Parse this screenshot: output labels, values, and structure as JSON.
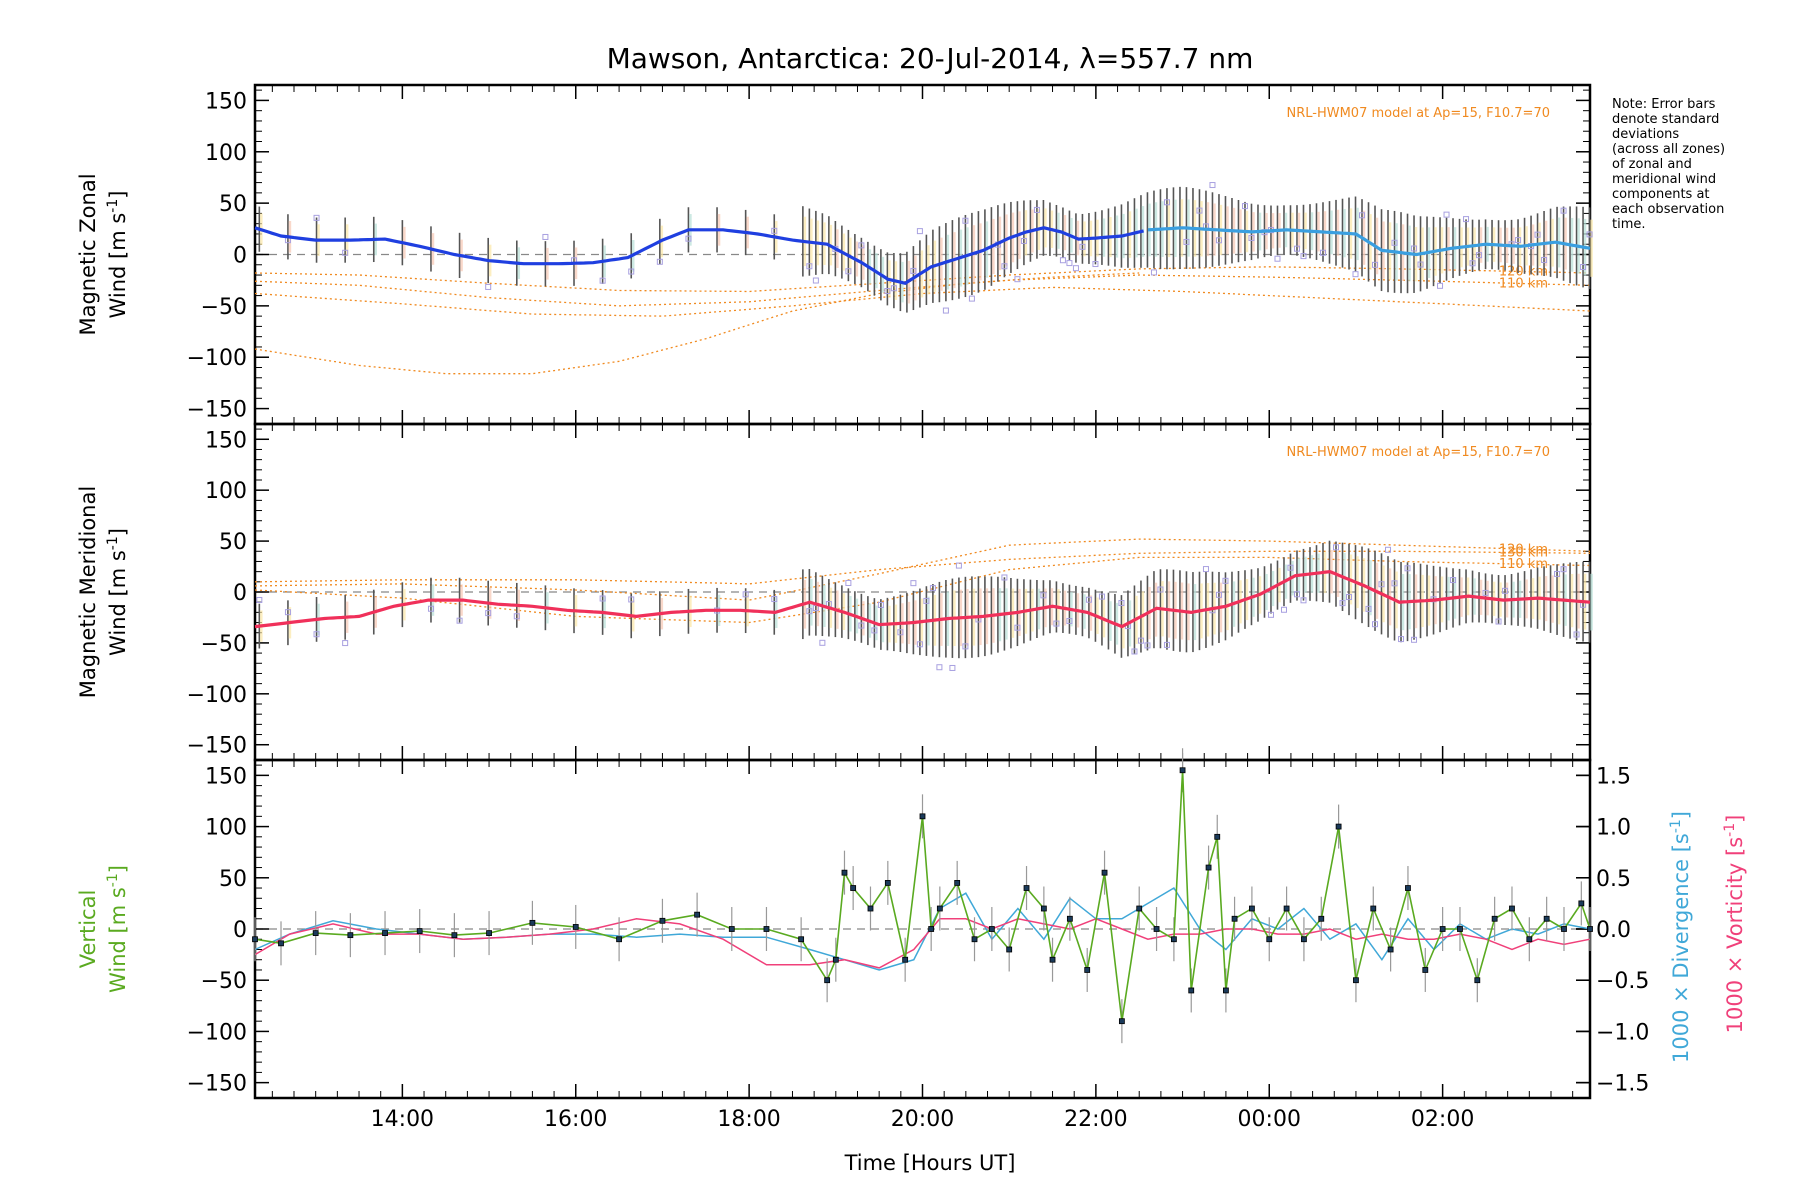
{
  "title": "Mawson, Antarctica: 20-Jul-2014, λ=557.7 nm",
  "note": [
    "Note: Error bars",
    "denote standard",
    "deviations",
    "(across all zones)",
    "of zonal and",
    "meridional wind",
    "components at",
    "each observation",
    "time."
  ],
  "colors": {
    "zonal_mean": "#1f3fe0",
    "zonal_mean_late": "#3a9fe0",
    "meridional_mean": "#f0305a",
    "model": "#f08a20",
    "vertical": "#5aaa20",
    "divergence": "#40a8d8",
    "vorticity": "#f0407a",
    "scatter": "#a8a0e0",
    "error_bar": "#555555"
  },
  "chart_data": [
    {
      "type": "line",
      "panel": "zonal",
      "ylabel_line1": "Magnetic Zonal",
      "ylabel_line2": "Wind",
      "ylabel_unit": "[m s",
      "ylabel_exp": "-1",
      "ylabel_close": "]",
      "ylim": [
        -165,
        165
      ],
      "yticks": [
        -150,
        -100,
        -50,
        0,
        50,
        100,
        150
      ],
      "model_label": "NRL-HWM07 model at Ap=15, F10.7=70",
      "model_alt_labels": [
        "120 km",
        "110 km"
      ],
      "series": [
        {
          "name": "mean",
          "x": [
            12.3,
            12.6,
            13.0,
            13.4,
            13.8,
            14.2,
            14.6,
            15.0,
            15.4,
            15.8,
            16.2,
            16.6,
            17.0,
            17.3,
            17.7,
            18.1,
            18.5,
            18.9,
            19.3,
            19.6,
            19.8,
            20.1,
            20.4,
            20.7,
            21.0,
            21.2,
            21.4,
            21.6,
            21.8,
            22.0,
            22.3,
            22.6,
            23.0,
            23.4,
            23.8,
            24.2,
            24.6,
            25.0,
            25.3,
            25.7,
            26.1,
            26.5,
            26.9,
            27.3,
            27.7
          ],
          "y": [
            26,
            18,
            14,
            14,
            15,
            8,
            0,
            -6,
            -9,
            -9,
            -8,
            -3,
            14,
            24,
            24,
            20,
            14,
            10,
            -8,
            -24,
            -28,
            -12,
            -4,
            4,
            16,
            22,
            26,
            22,
            15,
            16,
            18,
            24,
            26,
            24,
            22,
            24,
            22,
            20,
            4,
            0,
            6,
            10,
            8,
            12,
            6
          ]
        }
      ],
      "model_curves": [
        {
          "x": [
            12.3,
            13.5,
            15.0,
            16.5,
            18.0,
            19.5,
            21.0,
            22.5,
            24.0,
            25.5,
            27.7
          ],
          "y": [
            -18,
            -20,
            -28,
            -35,
            -36,
            -28,
            -20,
            -14,
            -12,
            -14,
            -18
          ]
        },
        {
          "x": [
            12.3,
            13.5,
            15.0,
            16.5,
            18.0,
            19.5,
            21.0,
            22.5,
            24.0,
            25.5,
            27.7
          ],
          "y": [
            -26,
            -30,
            -42,
            -50,
            -46,
            -35,
            -25,
            -20,
            -22,
            -25,
            -30
          ]
        },
        {
          "x": [
            12.3,
            14.0,
            15.5,
            17.0,
            18.5,
            20.0,
            21.5,
            23.0,
            24.5,
            26.0,
            27.7
          ],
          "y": [
            -38,
            -48,
            -58,
            -60,
            -50,
            -38,
            -32,
            -36,
            -42,
            -48,
            -55
          ]
        },
        {
          "x": [
            12.3,
            13.5,
            14.5,
            15.5,
            16.5,
            17.5,
            18.5,
            19.5,
            20.5,
            21.5,
            22.5
          ],
          "y": [
            -92,
            -108,
            -116,
            -116,
            -104,
            -82,
            -55,
            -38,
            -28,
            -22,
            -18
          ]
        }
      ],
      "xlim": [
        12.3,
        27.7
      ]
    },
    {
      "type": "line",
      "panel": "meridional",
      "ylabel_line1": "Magnetic Meridional",
      "ylabel_line2": "Wind",
      "ylabel_unit": "[m s",
      "ylabel_exp": "-1",
      "ylabel_close": "]",
      "ylim": [
        -165,
        165
      ],
      "yticks": [
        -150,
        -100,
        -50,
        0,
        50,
        100,
        150
      ],
      "model_label": "NRL-HWM07 model at Ap=15, F10.7=70",
      "model_alt_labels": [
        "130 km",
        "120 km",
        "110 km"
      ],
      "series": [
        {
          "name": "mean",
          "x": [
            12.3,
            12.7,
            13.1,
            13.5,
            13.9,
            14.3,
            14.7,
            15.1,
            15.5,
            15.9,
            16.3,
            16.7,
            17.1,
            17.5,
            17.9,
            18.3,
            18.7,
            19.1,
            19.5,
            19.9,
            20.3,
            20.7,
            21.1,
            21.5,
            21.9,
            22.3,
            22.7,
            23.1,
            23.5,
            23.9,
            24.3,
            24.7,
            25.1,
            25.5,
            25.9,
            26.3,
            26.7,
            27.1,
            27.7
          ],
          "y": [
            -34,
            -30,
            -26,
            -24,
            -14,
            -8,
            -8,
            -12,
            -14,
            -18,
            -20,
            -24,
            -20,
            -18,
            -18,
            -20,
            -10,
            -20,
            -32,
            -30,
            -26,
            -24,
            -20,
            -14,
            -20,
            -34,
            -16,
            -20,
            -14,
            -2,
            16,
            20,
            6,
            -10,
            -8,
            -4,
            -8,
            -6,
            -10
          ]
        }
      ],
      "model_curves": [
        {
          "x": [
            12.3,
            14.0,
            16.0,
            18.0,
            19.5,
            21.0,
            22.5,
            24.0,
            25.5,
            27.7
          ],
          "y": [
            10,
            12,
            12,
            8,
            22,
            32,
            38,
            40,
            40,
            38
          ]
        },
        {
          "x": [
            12.3,
            14.0,
            16.0,
            18.0,
            19.5,
            21.0,
            22.5,
            24.0,
            25.5,
            27.7
          ],
          "y": [
            6,
            8,
            2,
            -8,
            18,
            46,
            52,
            50,
            46,
            40
          ]
        },
        {
          "x": [
            12.3,
            14.0,
            16.0,
            18.0,
            19.5,
            21.0,
            22.5,
            24.0,
            25.5,
            27.7
          ],
          "y": [
            2,
            -6,
            -24,
            -30,
            -10,
            22,
            34,
            34,
            30,
            26
          ]
        }
      ],
      "xlim": [
        12.3,
        27.7
      ]
    },
    {
      "type": "line",
      "panel": "vertical",
      "ylabel_line1": "Vertical",
      "ylabel_line2": "Wind",
      "ylabel_unit": "[m s",
      "ylabel_exp": "-1",
      "ylabel_close": "]",
      "ylim": [
        -165,
        165
      ],
      "yticks": [
        -150,
        -100,
        -50,
        0,
        50,
        100,
        150
      ],
      "y2lim": [
        -1.65,
        1.65
      ],
      "y2ticks": [
        -1.5,
        -1.0,
        -0.5,
        0.0,
        0.5,
        1.0,
        1.5
      ],
      "y2labels": [
        "−1.5",
        "−1.0",
        "−0.5",
        "0.0",
        "0.5",
        "1.0",
        "1.5"
      ],
      "y2label_div": "1000 × Divergence",
      "y2label_vort": "1000 × Vorticity",
      "y2label_unit": "[s",
      "y2label_exp": "-1",
      "y2label_close": "]",
      "xlabel": "Time [Hours UT]",
      "xticks": [
        14,
        16,
        18,
        20,
        22,
        24,
        26
      ],
      "xticklabels": [
        "14:00",
        "16:00",
        "18:00",
        "20:00",
        "22:00",
        "00:00",
        "02:00"
      ],
      "xlim": [
        12.3,
        27.7
      ],
      "series": [
        {
          "name": "vertical",
          "x": [
            12.3,
            12.6,
            13.0,
            13.4,
            13.8,
            14.2,
            14.6,
            15.0,
            15.5,
            16.0,
            16.5,
            17.0,
            17.4,
            17.8,
            18.2,
            18.6,
            18.9,
            19.0,
            19.1,
            19.2,
            19.4,
            19.6,
            19.8,
            20.0,
            20.1,
            20.2,
            20.4,
            20.6,
            20.8,
            21.0,
            21.2,
            21.4,
            21.5,
            21.7,
            21.9,
            22.1,
            22.3,
            22.5,
            22.7,
            22.9,
            23.0,
            23.1,
            23.3,
            23.4,
            23.5,
            23.6,
            23.8,
            24.0,
            24.2,
            24.4,
            24.6,
            24.8,
            25.0,
            25.2,
            25.4,
            25.6,
            25.8,
            26.0,
            26.2,
            26.4,
            26.6,
            26.8,
            27.0,
            27.2,
            27.4,
            27.6,
            27.7
          ],
          "y": [
            -10,
            -14,
            -4,
            -6,
            -4,
            -2,
            -6,
            -4,
            6,
            2,
            -10,
            8,
            14,
            0,
            0,
            -10,
            -50,
            -30,
            55,
            40,
            20,
            45,
            -30,
            110,
            0,
            20,
            45,
            -10,
            0,
            -20,
            40,
            20,
            -30,
            10,
            -40,
            55,
            -90,
            20,
            0,
            -10,
            155,
            -60,
            60,
            90,
            -60,
            10,
            20,
            -10,
            20,
            -10,
            10,
            100,
            -50,
            20,
            -20,
            40,
            -40,
            0,
            0,
            -50,
            10,
            20,
            -10,
            10,
            0,
            25,
            0
          ]
        },
        {
          "name": "divergence",
          "x": [
            12.3,
            12.7,
            13.2,
            13.7,
            14.2,
            14.7,
            15.2,
            15.7,
            16.2,
            16.7,
            17.2,
            17.7,
            18.2,
            18.7,
            19.1,
            19.5,
            19.9,
            20.2,
            20.5,
            20.8,
            21.1,
            21.4,
            21.7,
            22.0,
            22.3,
            22.6,
            22.9,
            23.2,
            23.5,
            23.8,
            24.1,
            24.4,
            24.7,
            25.0,
            25.3,
            25.6,
            25.9,
            26.2,
            26.5,
            26.8,
            27.1,
            27.4,
            27.7
          ],
          "y": [
            -0.2,
            -0.05,
            0.08,
            0.0,
            -0.05,
            -0.1,
            -0.08,
            -0.05,
            -0.05,
            -0.08,
            -0.05,
            -0.08,
            -0.08,
            -0.2,
            -0.3,
            -0.4,
            -0.3,
            0.2,
            0.35,
            -0.1,
            0.2,
            -0.1,
            0.3,
            0.1,
            0.1,
            0.25,
            0.4,
            0.0,
            -0.2,
            0.1,
            0.0,
            0.2,
            -0.1,
            0.05,
            -0.3,
            0.1,
            -0.2,
            0.05,
            -0.1,
            0.0,
            -0.05,
            0.05,
            0.0
          ]
        },
        {
          "name": "vorticity",
          "x": [
            12.3,
            12.7,
            13.2,
            13.7,
            14.2,
            14.7,
            15.2,
            15.7,
            16.2,
            16.7,
            17.2,
            17.7,
            18.2,
            18.7,
            19.1,
            19.5,
            19.9,
            20.2,
            20.5,
            20.8,
            21.1,
            21.4,
            21.7,
            22.0,
            22.3,
            22.6,
            22.9,
            23.2,
            23.5,
            23.8,
            24.1,
            24.4,
            24.7,
            25.0,
            25.3,
            25.6,
            25.9,
            26.2,
            26.5,
            26.8,
            27.1,
            27.4,
            27.7
          ],
          "y": [
            -0.25,
            -0.05,
            0.05,
            -0.05,
            -0.05,
            -0.1,
            -0.08,
            -0.05,
            0.0,
            0.1,
            0.05,
            -0.1,
            -0.35,
            -0.35,
            -0.3,
            -0.38,
            -0.2,
            0.1,
            0.1,
            0.0,
            0.1,
            0.05,
            0.0,
            0.1,
            0.0,
            -0.1,
            -0.05,
            -0.05,
            0.0,
            0.0,
            -0.05,
            -0.05,
            0.0,
            -0.1,
            -0.05,
            -0.1,
            -0.1,
            -0.05,
            -0.1,
            -0.2,
            -0.1,
            -0.15,
            -0.1
          ]
        }
      ]
    }
  ]
}
